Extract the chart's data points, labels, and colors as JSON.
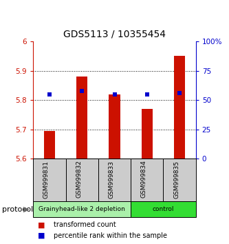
{
  "title": "GDS5113 / 10355454",
  "samples": [
    "GSM999831",
    "GSM999832",
    "GSM999833",
    "GSM999834",
    "GSM999835"
  ],
  "red_values": [
    5.695,
    5.88,
    5.82,
    5.77,
    5.95
  ],
  "blue_values": [
    5.82,
    5.83,
    5.82,
    5.82,
    5.825
  ],
  "ylim": [
    5.6,
    6.0
  ],
  "yticks_left": [
    5.6,
    5.7,
    5.8,
    5.9,
    6.0
  ],
  "ytick_labels_left": [
    "5.6",
    "5.7",
    "5.8",
    "5.9",
    "6"
  ],
  "yticks_right_pct": [
    0,
    25,
    50,
    75,
    100
  ],
  "ytick_labels_right": [
    "0",
    "25",
    "50",
    "75",
    "100%"
  ],
  "ybaseline": 5.6,
  "groups": [
    {
      "label": "Grainyhead-like 2 depletion",
      "color": "#aaf0aa",
      "start": 0,
      "end": 3
    },
    {
      "label": "control",
      "color": "#33dd33",
      "start": 3,
      "end": 5
    }
  ],
  "protocol_label": "protocol",
  "legend_red": "transformed count",
  "legend_blue": "percentile rank within the sample",
  "bar_color": "#cc1100",
  "dot_color": "#0000cc",
  "axis_color_left": "#cc1100",
  "axis_color_right": "#0000cc",
  "bg_color": "#ffffff",
  "bar_width": 0.35,
  "dot_size": 5,
  "sample_box_color": "#cccccc",
  "title_fontsize": 10,
  "tick_fontsize": 7.5,
  "legend_fontsize": 7,
  "group_fontsize": 6.5,
  "protocol_fontsize": 8
}
